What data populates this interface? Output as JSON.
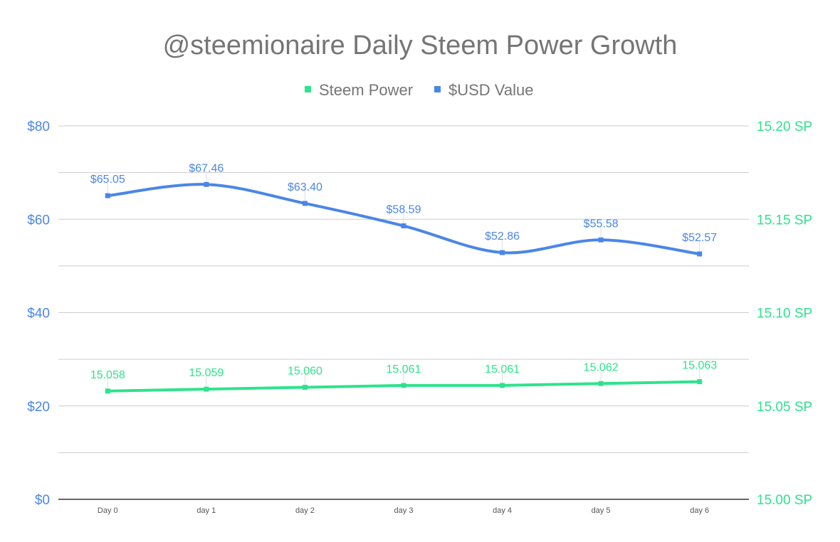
{
  "chart_data": {
    "type": "line",
    "title": "@steemionaire Daily Steem Power Growth",
    "legend_position": "top",
    "grid": true,
    "categories": [
      "Day 0",
      "day 1",
      "day 2",
      "day 3",
      "day 4",
      "day 5",
      "day 6"
    ],
    "series": [
      {
        "name": "Steem Power",
        "axis": "right",
        "color": "#2ee38c",
        "values": [
          15.058,
          15.059,
          15.06,
          15.061,
          15.061,
          15.062,
          15.063
        ],
        "labels": [
          "15.058",
          "15.059",
          "15.060",
          "15.061",
          "15.061",
          "15.062",
          "15.063"
        ]
      },
      {
        "name": "$USD Value",
        "axis": "left",
        "color": "#4a86e8",
        "smooth": true,
        "values": [
          65.05,
          67.46,
          63.4,
          58.59,
          52.86,
          55.58,
          52.57
        ],
        "labels": [
          "$65.05",
          "$67.46",
          "$63.40",
          "$58.59",
          "$52.86",
          "$55.58",
          "$52.57"
        ]
      }
    ],
    "left_axis": {
      "ylim": [
        0,
        80
      ],
      "ticks": [
        0,
        20,
        40,
        60,
        80
      ],
      "tick_labels": [
        "$0",
        "$20",
        "$40",
        "$60",
        "$80"
      ],
      "color": "#4a86e8"
    },
    "right_axis": {
      "ylim": [
        15.0,
        15.2
      ],
      "ticks": [
        15.0,
        15.05,
        15.1,
        15.15,
        15.2
      ],
      "tick_labels": [
        "15.00 SP",
        "15.05 SP",
        "15.10 SP",
        "15.15 SP",
        "15.20 SP"
      ],
      "color": "#2ee38c"
    }
  }
}
